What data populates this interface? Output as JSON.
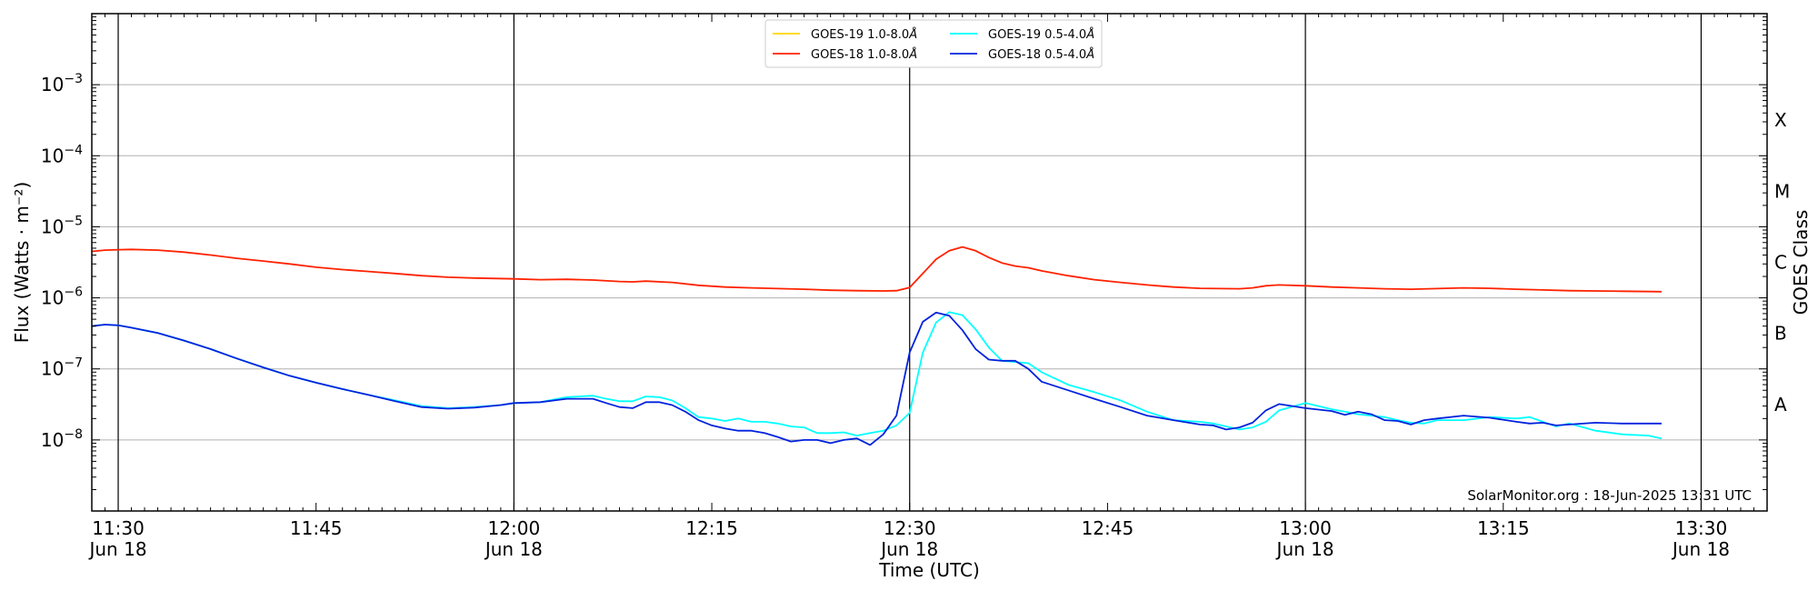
{
  "chart_data": {
    "type": "line",
    "title": "",
    "xlabel": "Time (UTC)",
    "ylabel": "Flux (Watts · m⁻²)",
    "ylabel_right": "GOES Class",
    "yscale": "log",
    "xlim": [
      "11:28",
      "13:35"
    ],
    "ylim": [
      1e-09,
      0.01
    ],
    "grid": "horizontal",
    "legend_position": "top-center",
    "footer": "SolarMonitor.org : 18-Jun-2025 13:31 UTC",
    "x_ticks": [
      {
        "time": "11:30",
        "date": "Jun 18"
      },
      {
        "time": "11:45",
        "date": ""
      },
      {
        "time": "12:00",
        "date": "Jun 18"
      },
      {
        "time": "12:15",
        "date": ""
      },
      {
        "time": "12:30",
        "date": "Jun 18"
      },
      {
        "time": "12:45",
        "date": ""
      },
      {
        "time": "13:00",
        "date": "Jun 18"
      },
      {
        "time": "13:15",
        "date": ""
      },
      {
        "time": "13:30",
        "date": "Jun 18"
      }
    ],
    "vertical_lines": [
      "11:30",
      "12:00",
      "12:30",
      "13:00",
      "13:30"
    ],
    "y_ticks": [
      {
        "value": 1e-08,
        "base": "10",
        "exp": "−8"
      },
      {
        "value": 1e-07,
        "base": "10",
        "exp": "−7"
      },
      {
        "value": 1e-06,
        "base": "10",
        "exp": "−6"
      },
      {
        "value": 1e-05,
        "base": "10",
        "exp": "−5"
      },
      {
        "value": 0.0001,
        "base": "10",
        "exp": "−4"
      },
      {
        "value": 0.001,
        "base": "10",
        "exp": "−3"
      }
    ],
    "goes_classes": [
      {
        "label": "A",
        "value": 3.16e-08
      },
      {
        "label": "B",
        "value": 3.16e-07
      },
      {
        "label": "C",
        "value": 3.16e-06
      },
      {
        "label": "M",
        "value": 3.16e-05
      },
      {
        "label": "X",
        "value": 0.000316
      }
    ],
    "series": [
      {
        "name": "GOES-19 1.0-8.0",
        "unit": "Å",
        "color": "#ffd700",
        "x": [],
        "y": []
      },
      {
        "name": "GOES-18 1.0-8.0",
        "unit": "Å",
        "color": "#ff2200",
        "x": [
          "11:28",
          "11:29",
          "11:31",
          "11:33",
          "11:35",
          "11:37",
          "11:39",
          "11:41",
          "11:43",
          "11:45",
          "11:47",
          "11:49",
          "11:51",
          "11:53",
          "11:55",
          "11:57",
          "12:00",
          "12:02",
          "12:04",
          "12:06",
          "12:08",
          "12:09",
          "12:10",
          "12:12",
          "12:14",
          "12:16",
          "12:18",
          "12:20",
          "12:22",
          "12:24",
          "12:26",
          "12:28",
          "12:29",
          "12:30",
          "12:31",
          "12:32",
          "12:33",
          "12:34",
          "12:35",
          "12:36",
          "12:37",
          "12:38",
          "12:39",
          "12:40",
          "12:42",
          "12:44",
          "12:46",
          "12:48",
          "12:50",
          "12:52",
          "12:55",
          "12:56",
          "12:57",
          "12:58",
          "13:00",
          "13:02",
          "13:04",
          "13:06",
          "13:08",
          "13:10",
          "13:12",
          "13:14",
          "13:16",
          "13:18",
          "13:20",
          "13:22",
          "13:24",
          "13:27"
        ],
        "y": [
          4.5e-06,
          4.7e-06,
          4.8e-06,
          4.7e-06,
          4.4e-06,
          4e-06,
          3.6e-06,
          3.3e-06,
          3e-06,
          2.7e-06,
          2.5e-06,
          2.35e-06,
          2.2e-06,
          2.05e-06,
          1.95e-06,
          1.9e-06,
          1.85e-06,
          1.8e-06,
          1.82e-06,
          1.78e-06,
          1.7e-06,
          1.68e-06,
          1.72e-06,
          1.65e-06,
          1.5e-06,
          1.42e-06,
          1.38e-06,
          1.35e-06,
          1.32e-06,
          1.28e-06,
          1.26e-06,
          1.25e-06,
          1.26e-06,
          1.4e-06,
          2.2e-06,
          3.5e-06,
          4.6e-06,
          5.2e-06,
          4.6e-06,
          3.7e-06,
          3.1e-06,
          2.8e-06,
          2.65e-06,
          2.4e-06,
          2.05e-06,
          1.8e-06,
          1.65e-06,
          1.52e-06,
          1.42e-06,
          1.36e-06,
          1.34e-06,
          1.38e-06,
          1.48e-06,
          1.52e-06,
          1.48e-06,
          1.42e-06,
          1.38e-06,
          1.34e-06,
          1.32e-06,
          1.35e-06,
          1.38e-06,
          1.36e-06,
          1.32e-06,
          1.29e-06,
          1.26e-06,
          1.25e-06,
          1.24e-06,
          1.22e-06
        ]
      },
      {
        "name": "GOES-19 0.5-4.0",
        "unit": "Å",
        "color": "#00ffff",
        "x": [
          "11:28",
          "11:29",
          "11:30",
          "11:31",
          "11:33",
          "11:35",
          "11:37",
          "11:39",
          "11:41",
          "11:43",
          "11:45",
          "11:47",
          "11:49",
          "11:51",
          "11:53",
          "11:55",
          "11:57",
          "11:59",
          "12:00",
          "12:02",
          "12:04",
          "12:06",
          "12:07",
          "12:08",
          "12:09",
          "12:10",
          "12:11",
          "12:12",
          "12:13",
          "12:14",
          "12:15",
          "12:16",
          "12:17",
          "12:18",
          "12:19",
          "12:20",
          "12:21",
          "12:22",
          "12:23",
          "12:24",
          "12:25",
          "12:26",
          "12:27",
          "12:28",
          "12:29",
          "12:30",
          "12:31",
          "12:32",
          "12:33",
          "12:34",
          "12:35",
          "12:36",
          "12:37",
          "12:38",
          "12:39",
          "12:40",
          "12:42",
          "12:44",
          "12:46",
          "12:48",
          "12:50",
          "12:52",
          "12:53",
          "12:54",
          "12:55",
          "12:56",
          "12:57",
          "12:58",
          "13:00",
          "13:02",
          "13:03",
          "13:04",
          "13:05",
          "13:06",
          "13:07",
          "13:08",
          "13:09",
          "13:10",
          "13:12",
          "13:14",
          "13:16",
          "13:17",
          "13:18",
          "13:19",
          "13:20",
          "13:22",
          "13:24",
          "13:26",
          "13:27"
        ],
        "y": [
          4e-07,
          4.2e-07,
          4.1e-07,
          3.8e-07,
          3.2e-07,
          2.5e-07,
          1.9e-07,
          1.4e-07,
          1.05e-07,
          8e-08,
          6.4e-08,
          5.2e-08,
          4.3e-08,
          3.6e-08,
          3e-08,
          2.8e-08,
          2.9e-08,
          3.1e-08,
          3.3e-08,
          3.4e-08,
          4e-08,
          4.2e-08,
          3.8e-08,
          3.5e-08,
          3.5e-08,
          4.1e-08,
          4e-08,
          3.6e-08,
          2.8e-08,
          2.1e-08,
          2e-08,
          1.85e-08,
          2e-08,
          1.8e-08,
          1.8e-08,
          1.7e-08,
          1.55e-08,
          1.5e-08,
          1.25e-08,
          1.25e-08,
          1.28e-08,
          1.15e-08,
          1.25e-08,
          1.35e-08,
          1.6e-08,
          2.4e-08,
          1.7e-07,
          4.5e-07,
          6.3e-07,
          5.7e-07,
          3.6e-07,
          2e-07,
          1.3e-07,
          1.25e-07,
          1.2e-07,
          9e-08,
          6e-08,
          4.7e-08,
          3.6e-08,
          2.5e-08,
          1.9e-08,
          1.8e-08,
          1.7e-08,
          1.55e-08,
          1.4e-08,
          1.5e-08,
          1.8e-08,
          2.6e-08,
          3.3e-08,
          2.7e-08,
          2.5e-08,
          2.3e-08,
          2.2e-08,
          2.1e-08,
          1.9e-08,
          1.75e-08,
          1.7e-08,
          1.9e-08,
          1.9e-08,
          2.1e-08,
          2e-08,
          2.1e-08,
          1.8e-08,
          1.55e-08,
          1.7e-08,
          1.35e-08,
          1.2e-08,
          1.15e-08,
          1.05e-08
        ]
      },
      {
        "name": "GOES-18 0.5-4.0",
        "unit": "Å",
        "color": "#0022dd",
        "x": [
          "11:28",
          "11:29",
          "11:30",
          "11:31",
          "11:33",
          "11:35",
          "11:37",
          "11:39",
          "11:41",
          "11:43",
          "11:45",
          "11:47",
          "11:49",
          "11:51",
          "11:53",
          "11:55",
          "11:57",
          "11:59",
          "12:00",
          "12:02",
          "12:04",
          "12:06",
          "12:07",
          "12:08",
          "12:09",
          "12:10",
          "12:11",
          "12:12",
          "12:13",
          "12:14",
          "12:15",
          "12:16",
          "12:17",
          "12:18",
          "12:19",
          "12:20",
          "12:21",
          "12:22",
          "12:23",
          "12:24",
          "12:25",
          "12:26",
          "12:27",
          "12:28",
          "12:29",
          "12:30",
          "12:31",
          "12:32",
          "12:33",
          "12:34",
          "12:35",
          "12:36",
          "12:37",
          "12:38",
          "12:39",
          "12:40",
          "12:42",
          "12:44",
          "12:46",
          "12:48",
          "12:50",
          "12:52",
          "12:53",
          "12:54",
          "12:55",
          "12:56",
          "12:57",
          "12:58",
          "13:00",
          "13:02",
          "13:03",
          "13:04",
          "13:05",
          "13:06",
          "13:07",
          "13:08",
          "13:09",
          "13:10",
          "13:12",
          "13:14",
          "13:16",
          "13:17",
          "13:18",
          "13:19",
          "13:20",
          "13:22",
          "13:24",
          "13:26",
          "13:27"
        ],
        "y": [
          4e-07,
          4.2e-07,
          4.1e-07,
          3.8e-07,
          3.2e-07,
          2.5e-07,
          1.9e-07,
          1.4e-07,
          1.05e-07,
          8e-08,
          6.4e-08,
          5.2e-08,
          4.3e-08,
          3.5e-08,
          2.9e-08,
          2.75e-08,
          2.85e-08,
          3.1e-08,
          3.3e-08,
          3.4e-08,
          3.8e-08,
          3.8e-08,
          3.3e-08,
          2.9e-08,
          2.8e-08,
          3.4e-08,
          3.4e-08,
          3.1e-08,
          2.5e-08,
          1.9e-08,
          1.6e-08,
          1.45e-08,
          1.35e-08,
          1.35e-08,
          1.25e-08,
          1.1e-08,
          9.5e-09,
          1e-08,
          1e-08,
          9e-09,
          1e-08,
          1.05e-08,
          8.5e-09,
          1.2e-08,
          2.2e-08,
          1.7e-07,
          4.6e-07,
          6.2e-07,
          5.6e-07,
          3.5e-07,
          1.9e-07,
          1.35e-07,
          1.3e-07,
          1.3e-07,
          1e-07,
          6.6e-08,
          5e-08,
          3.8e-08,
          2.9e-08,
          2.2e-08,
          1.9e-08,
          1.65e-08,
          1.6e-08,
          1.4e-08,
          1.5e-08,
          1.75e-08,
          2.6e-08,
          3.2e-08,
          2.8e-08,
          2.55e-08,
          2.25e-08,
          2.5e-08,
          2.3e-08,
          1.9e-08,
          1.85e-08,
          1.65e-08,
          1.9e-08,
          2e-08,
          2.2e-08,
          2.05e-08,
          1.8e-08,
          1.7e-08,
          1.75e-08,
          1.6e-08,
          1.65e-08,
          1.75e-08,
          1.7e-08,
          1.7e-08,
          1.7e-08
        ]
      }
    ]
  }
}
